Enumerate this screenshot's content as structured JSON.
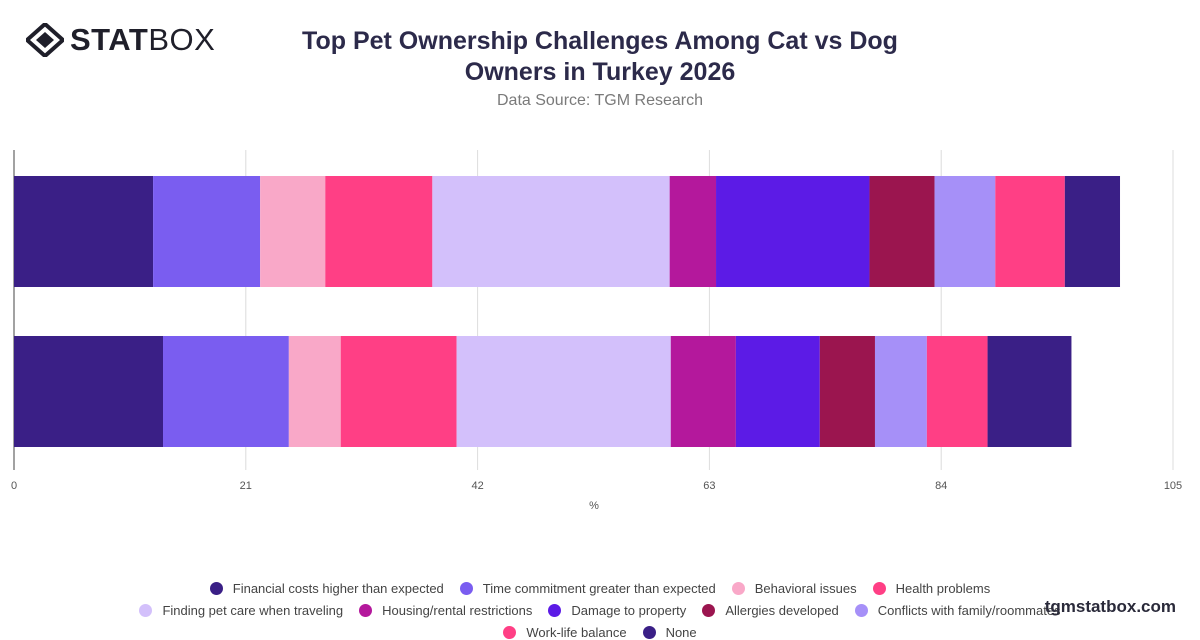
{
  "header": {
    "logo_bold": "STAT",
    "logo_light": "BOX",
    "title": "Top Pet Ownership Challenges Among Cat vs Dog Owners in Turkey 2026",
    "subtitle": "Data Source: TGM Research"
  },
  "footer": {
    "brand_url": "tgmstatbox.com"
  },
  "chart_data": {
    "type": "bar",
    "orientation": "horizontal",
    "stacked": true,
    "xlabel": "%",
    "xlim": [
      0,
      105
    ],
    "xticks": [
      0,
      21,
      42,
      63,
      84,
      105
    ],
    "grid": true,
    "legend_position": "bottom",
    "categories": [
      "",
      ""
    ],
    "series": [
      {
        "name": "Financial costs higher than expected",
        "color": "#3a1f86",
        "values": [
          12.6,
          13.5
        ]
      },
      {
        "name": "Time commitment greater than expected",
        "color": "#7a5df0",
        "values": [
          9.7,
          11.4
        ]
      },
      {
        "name": "Behavioral issues",
        "color": "#f9a8c8",
        "values": [
          5.9,
          4.7
        ]
      },
      {
        "name": "Health problems",
        "color": "#ff3f85",
        "values": [
          9.7,
          10.5
        ]
      },
      {
        "name": "Finding pet care when traveling",
        "color": "#d3c0fb",
        "values": [
          21.5,
          19.4
        ]
      },
      {
        "name": "Housing/rental restrictions",
        "color": "#b4189c",
        "values": [
          4.2,
          5.9
        ]
      },
      {
        "name": "Damage to property",
        "color": "#5c1be6",
        "values": [
          13.9,
          7.6
        ]
      },
      {
        "name": "Allergies developed",
        "color": "#9b154f",
        "values": [
          5.9,
          5.0
        ]
      },
      {
        "name": "Conflicts with family/roommates",
        "color": "#a690f8",
        "values": [
          5.5,
          4.7
        ]
      },
      {
        "name": "Work-life balance",
        "color": "#ff3f85",
        "values": [
          6.3,
          5.5
        ]
      },
      {
        "name": "None",
        "color": "#3a1f86",
        "values": [
          5.0,
          7.6
        ]
      }
    ]
  }
}
